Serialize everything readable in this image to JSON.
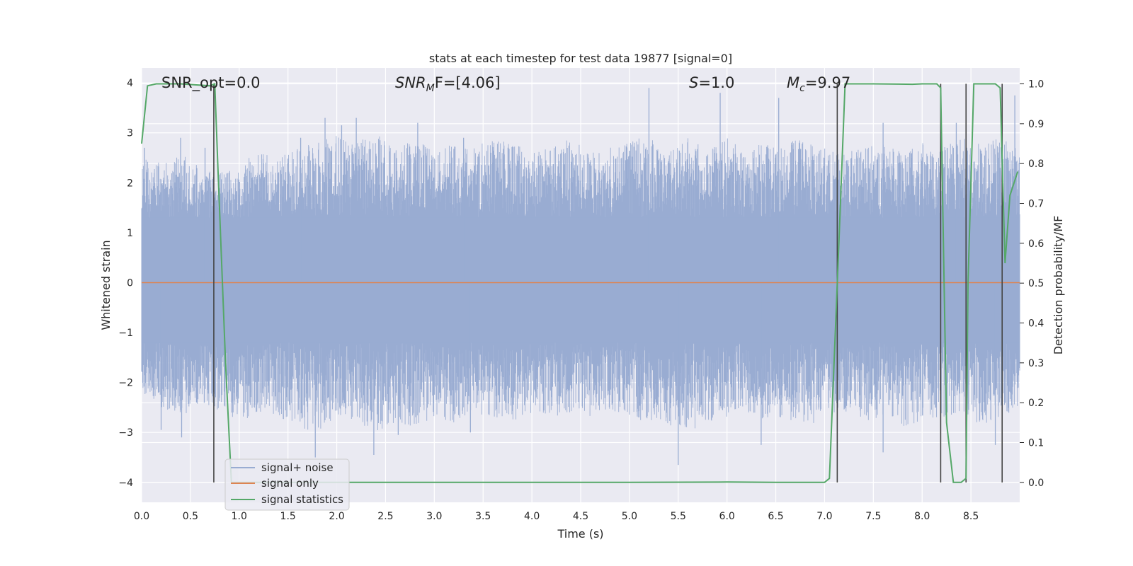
{
  "chart_data": {
    "type": "line",
    "title": "stats at each timestep for test data 19877 [signal=0]",
    "xlabel": "Time (s)",
    "ylabel_left": "Whitened strain",
    "ylabel_right": "Detection probability/MF",
    "xlim": [
      0,
      9.0
    ],
    "ylim_left": [
      -4.4,
      4.3
    ],
    "ylim_right": [
      -0.05,
      1.04
    ],
    "x_ticks": [
      "0.0",
      "0.5",
      "1.0",
      "1.5",
      "2.0",
      "2.5",
      "3.0",
      "3.5",
      "4.0",
      "4.5",
      "5.0",
      "5.5",
      "6.0",
      "6.5",
      "7.0",
      "7.5",
      "8.0",
      "8.5"
    ],
    "y_left_ticks": [
      "4",
      "3",
      "2",
      "1",
      "0",
      "−1",
      "−2",
      "−3",
      "−4"
    ],
    "y_right_ticks": [
      "1.0",
      "0.9",
      "0.8",
      "0.7",
      "0.6",
      "0.5",
      "0.4",
      "0.3",
      "0.2",
      "0.1",
      "0.0"
    ],
    "annotations": {
      "snr_opt": "SNR_opt=0.0",
      "snr_mf_main": "SNR",
      "snr_mf_sub": "M",
      "snr_mf_rest": "F=[4.06]",
      "s_main": "S",
      "s_rest": "=1.0",
      "mc_main": "M",
      "mc_sub": "c",
      "mc_rest": "=9.97"
    },
    "legend": {
      "placement": "lower-left",
      "entries": [
        "signal+ noise",
        "signal only",
        "signal statistics"
      ]
    },
    "colors": {
      "background": "#eaeaf2",
      "grid": "#ffffff",
      "noise": "#99acd2",
      "signal": "#dd8452",
      "statistics": "#55a868",
      "markers": "#444444"
    },
    "series": [
      {
        "name": "signal+ noise",
        "envelope_upper": {
          "x": [
            0.0,
            0.2,
            0.4,
            0.6,
            0.8,
            1.0,
            1.2,
            1.4,
            1.6,
            1.8,
            2.0,
            2.2,
            2.4,
            2.6,
            2.8,
            3.0,
            3.2,
            3.4,
            3.6,
            3.8,
            4.0,
            4.2,
            4.4,
            4.6,
            4.8,
            5.0,
            5.2,
            5.4,
            5.6,
            5.8,
            6.0,
            6.2,
            6.4,
            6.6,
            6.8,
            7.0,
            7.2,
            7.4,
            7.6,
            7.8,
            8.0,
            8.2,
            8.4,
            8.6,
            8.8,
            9.0
          ],
          "y": [
            2.5,
            2.4,
            2.6,
            2.3,
            2.2,
            2.4,
            2.6,
            2.5,
            2.7,
            2.8,
            3.0,
            2.8,
            3.0,
            2.7,
            2.9,
            2.6,
            2.8,
            2.7,
            2.9,
            2.8,
            2.6,
            2.7,
            2.9,
            2.6,
            2.8,
            2.8,
            3.0,
            2.6,
            2.9,
            2.7,
            2.9,
            2.6,
            2.9,
            2.8,
            2.9,
            2.7,
            2.6,
            2.7,
            2.8,
            2.6,
            2.8,
            2.7,
            2.9,
            2.8,
            2.9,
            2.7
          ]
        },
        "envelope_lower": {
          "x": [
            0.0,
            0.2,
            0.4,
            0.6,
            0.8,
            1.0,
            1.2,
            1.4,
            1.6,
            1.8,
            2.0,
            2.2,
            2.4,
            2.6,
            2.8,
            3.0,
            3.2,
            3.4,
            3.6,
            3.8,
            4.0,
            4.2,
            4.4,
            4.6,
            4.8,
            5.0,
            5.2,
            5.4,
            5.6,
            5.8,
            6.0,
            6.2,
            6.4,
            6.6,
            6.8,
            7.0,
            7.2,
            7.4,
            7.6,
            7.8,
            8.0,
            8.2,
            8.4,
            8.6,
            8.8,
            9.0
          ],
          "y": [
            -2.2,
            -2.5,
            -2.7,
            -2.4,
            -2.6,
            -2.8,
            -2.6,
            -2.7,
            -2.9,
            -3.0,
            -2.7,
            -2.8,
            -3.0,
            -2.8,
            -2.9,
            -2.7,
            -2.8,
            -2.6,
            -2.7,
            -2.8,
            -2.6,
            -2.7,
            -2.6,
            -2.7,
            -2.6,
            -2.7,
            -2.8,
            -2.9,
            -3.0,
            -2.8,
            -2.7,
            -2.6,
            -2.8,
            -2.7,
            -2.9,
            -2.7,
            -2.6,
            -2.8,
            -2.7,
            -2.9,
            -2.8,
            -2.8,
            -2.6,
            -2.9,
            -2.7,
            -2.6
          ]
        },
        "spikes": [
          {
            "x": 0.03,
            "y": 2.7
          },
          {
            "x": 0.4,
            "y": 2.9
          },
          {
            "x": 0.65,
            "y": 2.7
          },
          {
            "x": 1.63,
            "y": 2.9
          },
          {
            "x": 1.88,
            "y": 3.3
          },
          {
            "x": 2.05,
            "y": 3.15
          },
          {
            "x": 2.2,
            "y": 3.3
          },
          {
            "x": 2.83,
            "y": 3.2
          },
          {
            "x": 3.3,
            "y": 2.9
          },
          {
            "x": 5.2,
            "y": 3.9
          },
          {
            "x": 5.93,
            "y": 3.8
          },
          {
            "x": 6.53,
            "y": 3.7
          },
          {
            "x": 7.6,
            "y": 3.2
          },
          {
            "x": 8.35,
            "y": 3.2
          },
          {
            "x": 8.95,
            "y": 3.75
          },
          {
            "x": 0.2,
            "y": -2.95
          },
          {
            "x": 0.41,
            "y": -3.1
          },
          {
            "x": 1.78,
            "y": -3.5
          },
          {
            "x": 2.38,
            "y": -3.45
          },
          {
            "x": 2.63,
            "y": -3.05
          },
          {
            "x": 3.37,
            "y": -3.0
          },
          {
            "x": 5.5,
            "y": -3.65
          },
          {
            "x": 6.35,
            "y": -3.25
          },
          {
            "x": 7.6,
            "y": -3.4
          },
          {
            "x": 8.75,
            "y": -3.25
          }
        ]
      },
      {
        "name": "signal only",
        "x": [
          0,
          9.0
        ],
        "y": [
          0,
          0
        ]
      },
      {
        "name": "signal statistics",
        "axis": "right",
        "x": [
          0.0,
          0.06,
          0.15,
          0.4,
          0.7,
          0.75,
          0.78,
          0.86,
          0.92,
          1.5,
          3.0,
          5.0,
          6.0,
          6.5,
          7.0,
          7.05,
          7.15,
          7.21,
          7.5,
          7.9,
          8.0,
          8.15,
          8.19,
          8.25,
          8.32,
          8.4,
          8.45,
          8.47,
          8.53,
          8.75,
          8.8,
          8.85,
          8.9,
          8.98
        ],
        "y": [
          0.85,
          0.995,
          1.0,
          1.0,
          0.995,
          1.0,
          0.8,
          0.3,
          0.0,
          0.0,
          0.0,
          0.0,
          0.001,
          0.0,
          0.0,
          0.01,
          0.62,
          1.0,
          1.0,
          0.999,
          1.0,
          1.0,
          0.99,
          0.15,
          0.0,
          0.0,
          0.01,
          0.5,
          1.0,
          1.0,
          0.99,
          0.55,
          0.72,
          0.78
        ]
      }
    ],
    "vertical_markers": [
      0.74,
      7.13,
      8.19,
      8.45,
      8.82
    ]
  }
}
